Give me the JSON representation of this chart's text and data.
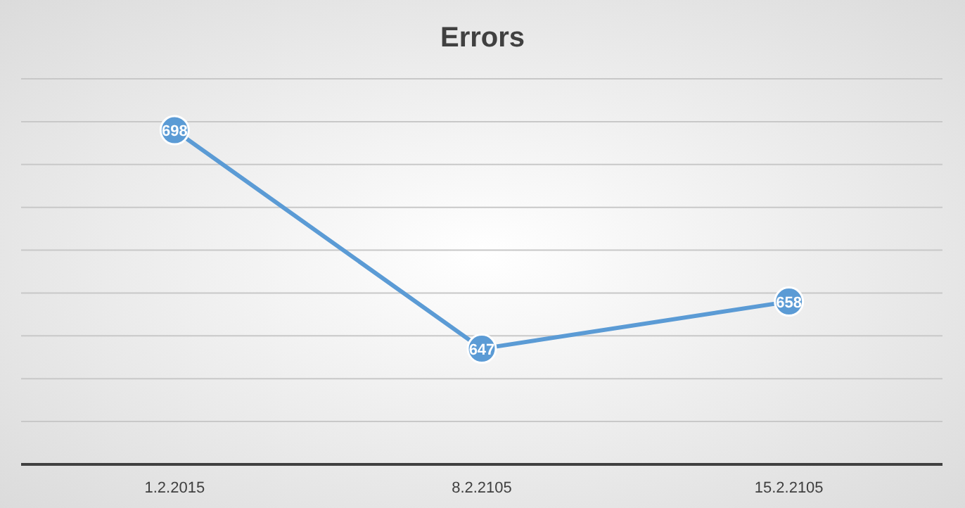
{
  "chart_data": {
    "type": "line",
    "title": "Errors",
    "categories": [
      "1.2.2015",
      "8.2.2105",
      "15.2.2105"
    ],
    "series": [
      {
        "color": "#5b9bd5",
        "values": [
          698,
          647,
          658
        ]
      }
    ],
    "ylim": [
      620,
      710
    ],
    "yticks": [
      {
        "value": 620,
        "label": null
      },
      {
        "value": 630,
        "label": null
      },
      {
        "value": 640,
        "label": null
      },
      {
        "value": 650,
        "label": null
      },
      {
        "value": 660,
        "label": null
      },
      {
        "value": 670,
        "label": null
      },
      {
        "value": 680,
        "label": null
      },
      {
        "value": 690,
        "label": null
      },
      {
        "value": 700,
        "label": null
      },
      {
        "value": 710,
        "label": null
      }
    ],
    "tick_labels": "x",
    "grid": "y",
    "marker": "circle",
    "line_style": "solid",
    "data_labels": true
  }
}
